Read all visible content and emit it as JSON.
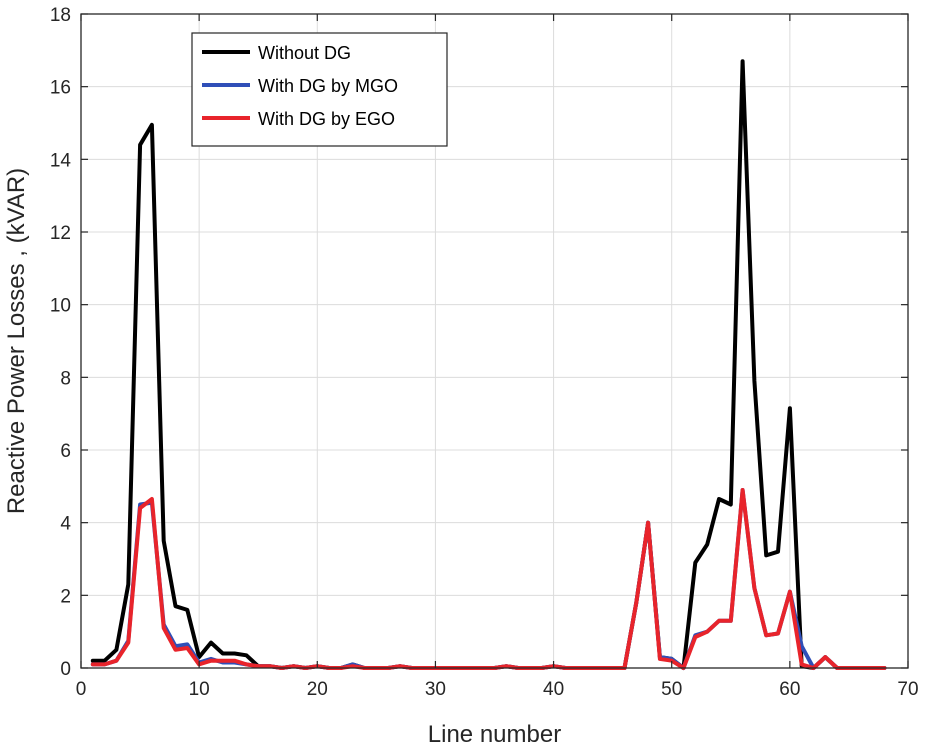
{
  "chart_data": {
    "type": "line",
    "title": "",
    "xlabel": "Line number",
    "ylabel": "Reactive Power Losses , (kVAR)",
    "xlim": [
      0,
      70
    ],
    "ylim": [
      0,
      18
    ],
    "xticks": [
      0,
      10,
      20,
      30,
      40,
      50,
      60,
      70
    ],
    "yticks": [
      0,
      2,
      4,
      6,
      8,
      10,
      12,
      14,
      16,
      18
    ],
    "grid": true,
    "legend_position": "top-left",
    "x": [
      1,
      2,
      3,
      4,
      5,
      6,
      7,
      8,
      9,
      10,
      11,
      12,
      13,
      14,
      15,
      16,
      17,
      18,
      19,
      20,
      21,
      22,
      23,
      24,
      25,
      26,
      27,
      28,
      29,
      30,
      31,
      32,
      33,
      34,
      35,
      36,
      37,
      38,
      39,
      40,
      41,
      42,
      43,
      44,
      45,
      46,
      47,
      48,
      49,
      50,
      51,
      52,
      53,
      54,
      55,
      56,
      57,
      58,
      59,
      60,
      61,
      62,
      63,
      64,
      65,
      66,
      67,
      68
    ],
    "series": [
      {
        "name": "Without DG",
        "color": "#000000",
        "values": [
          0.2,
          0.2,
          0.5,
          2.3,
          14.4,
          14.95,
          3.5,
          1.7,
          1.6,
          0.3,
          0.7,
          0.4,
          0.4,
          0.35,
          0.05,
          0.05,
          0,
          0.05,
          0,
          0.05,
          0,
          0,
          0.1,
          0,
          0,
          0,
          0.05,
          0,
          0,
          0,
          0,
          0,
          0,
          0,
          0,
          0.05,
          0,
          0,
          0,
          0.05,
          0,
          0,
          0,
          0,
          0,
          0,
          1.8,
          4.0,
          0.3,
          0.25,
          0,
          2.9,
          3.4,
          4.65,
          4.5,
          16.7,
          7.9,
          3.1,
          3.2,
          7.15,
          0.05,
          0,
          0.3,
          0,
          0,
          0,
          0,
          0
        ]
      },
      {
        "name": "With DG by MGO",
        "color": "#2f4fb8",
        "values": [
          0.1,
          0.1,
          0.2,
          0.75,
          4.5,
          4.55,
          1.2,
          0.6,
          0.65,
          0.15,
          0.25,
          0.15,
          0.15,
          0.1,
          0.05,
          0.05,
          0,
          0.05,
          0,
          0.05,
          0,
          0,
          0.1,
          0,
          0,
          0,
          0.05,
          0,
          0,
          0,
          0,
          0,
          0,
          0,
          0,
          0.05,
          0,
          0,
          0,
          0.05,
          0,
          0,
          0,
          0,
          0,
          0,
          1.8,
          4.0,
          0.3,
          0.25,
          0,
          0.9,
          1.0,
          1.3,
          1.3,
          4.9,
          2.2,
          0.9,
          0.95,
          2.1,
          0.6,
          0,
          0.3,
          0,
          0,
          0,
          0,
          0
        ]
      },
      {
        "name": "With DG by EGO",
        "color": "#e8242b",
        "values": [
          0.1,
          0.1,
          0.2,
          0.7,
          4.4,
          4.65,
          1.1,
          0.5,
          0.55,
          0.1,
          0.2,
          0.2,
          0.2,
          0.1,
          0.05,
          0.05,
          0,
          0.05,
          0,
          0.05,
          0,
          0,
          0.05,
          0,
          0,
          0,
          0.05,
          0,
          0,
          0,
          0,
          0,
          0,
          0,
          0,
          0.05,
          0,
          0,
          0,
          0.05,
          0,
          0,
          0,
          0,
          0,
          0,
          1.8,
          4.0,
          0.25,
          0.2,
          0,
          0.85,
          1.0,
          1.3,
          1.3,
          4.9,
          2.2,
          0.9,
          0.95,
          2.1,
          0.1,
          0,
          0.3,
          0,
          0,
          0,
          0,
          0
        ]
      }
    ]
  }
}
